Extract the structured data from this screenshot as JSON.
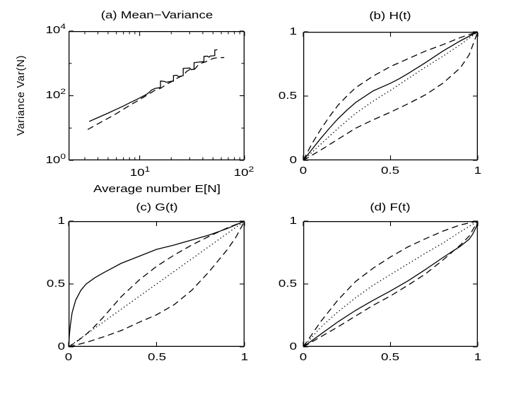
{
  "figure": {
    "background": "#ffffff",
    "stroke_color": "#000000"
  },
  "chart_data": [
    {
      "id": "a",
      "type": "line",
      "scale": "log-log",
      "title": "(a) Mean−Variance",
      "xlabel": "Average number E[N]",
      "ylabel": "Variance Var(N)",
      "xlim": [
        2.1,
        100
      ],
      "ylim": [
        1,
        10000
      ],
      "grid": false,
      "legend": "none",
      "xticks": [
        {
          "value": 10,
          "base": "10",
          "exp": "1"
        },
        {
          "value": 100,
          "base": "10",
          "exp": "2"
        }
      ],
      "yticks": [
        {
          "value": 1,
          "base": "10",
          "exp": "0"
        },
        {
          "value": 100,
          "base": "10",
          "exp": "2"
        },
        {
          "value": 10000,
          "base": "10",
          "exp": "4"
        }
      ],
      "minor_xticks": [
        3,
        4,
        5,
        6,
        7,
        8,
        9,
        20,
        30,
        40,
        50,
        60,
        70,
        80,
        90
      ],
      "minor_yticks": [
        10,
        1000
      ],
      "series": [
        {
          "name": "solid-staircase",
          "style": "solid",
          "points": [
            [
              3.3,
              16
            ],
            [
              4,
              21
            ],
            [
              5,
              29
            ],
            [
              6,
              38
            ],
            [
              7,
              48
            ],
            [
              8,
              60
            ],
            [
              9,
              72
            ],
            [
              10,
              85
            ],
            [
              11,
              100
            ],
            [
              12,
              118
            ],
            [
              13,
              150
            ],
            [
              14,
              168
            ],
            [
              15,
              175
            ],
            [
              15.8,
              182
            ],
            [
              15.8,
              285
            ],
            [
              17,
              278
            ],
            [
              18,
              262
            ],
            [
              19,
              272
            ],
            [
              20,
              278
            ],
            [
              21,
              282
            ],
            [
              21,
              420
            ],
            [
              22.5,
              430
            ],
            [
              23.5,
              392
            ],
            [
              24.5,
              400
            ],
            [
              26,
              420
            ],
            [
              26,
              700
            ],
            [
              28,
              712
            ],
            [
              30,
              720
            ],
            [
              31,
              640
            ],
            [
              32,
              650
            ],
            [
              33,
              658
            ],
            [
              33,
              1050
            ],
            [
              35,
              1080
            ],
            [
              37,
              1100
            ],
            [
              39,
              1120
            ],
            [
              41,
              1140
            ],
            [
              41,
              1650
            ],
            [
              44,
              1680
            ],
            [
              46,
              1560
            ],
            [
              47,
              1690
            ],
            [
              50,
              1720
            ],
            [
              52,
              1750
            ],
            [
              52,
              2600
            ],
            [
              54,
              2620
            ],
            [
              55,
              2700
            ]
          ]
        },
        {
          "name": "dashed-smooth",
          "style": "dashed",
          "points": [
            [
              3.2,
              9
            ],
            [
              4,
              13.5
            ],
            [
              5,
              20
            ],
            [
              6,
              28
            ],
            [
              7,
              38
            ],
            [
              8,
              50
            ],
            [
              9,
              62
            ],
            [
              10,
              76
            ],
            [
              12,
              108
            ],
            [
              14,
              148
            ],
            [
              16,
              172
            ],
            [
              18,
              228
            ],
            [
              20,
              268
            ],
            [
              22,
              330
            ],
            [
              24,
              378
            ],
            [
              26,
              428
            ],
            [
              28,
              560
            ],
            [
              30,
              650
            ],
            [
              32,
              610
            ],
            [
              34,
              700
            ],
            [
              36,
              880
            ],
            [
              38,
              1000
            ],
            [
              40,
              1050
            ],
            [
              42,
              1100
            ],
            [
              44,
              1180
            ],
            [
              46,
              1260
            ],
            [
              48,
              1340
            ],
            [
              50,
              1420
            ],
            [
              53,
              1480
            ],
            [
              58,
              1500
            ],
            [
              64,
              1520
            ]
          ]
        }
      ]
    },
    {
      "id": "b",
      "type": "line",
      "scale": "linear",
      "title": "(b) H(t)",
      "xlabel": "",
      "ylabel": "",
      "xlim": [
        0,
        1
      ],
      "ylim": [
        0,
        1
      ],
      "grid": false,
      "legend": "none",
      "xticks": [
        "0",
        "0.5",
        "1"
      ],
      "yticks": [
        "0",
        "0.5",
        "1"
      ],
      "series": [
        {
          "name": "dashed-upper",
          "style": "dashed",
          "points": [
            [
              0,
              0
            ],
            [
              0.05,
              0.13
            ],
            [
              0.1,
              0.24
            ],
            [
              0.15,
              0.34
            ],
            [
              0.2,
              0.43
            ],
            [
              0.25,
              0.5
            ],
            [
              0.3,
              0.565
            ],
            [
              0.4,
              0.655
            ],
            [
              0.5,
              0.73
            ],
            [
              0.6,
              0.79
            ],
            [
              0.7,
              0.85
            ],
            [
              0.8,
              0.9
            ],
            [
              0.9,
              0.955
            ],
            [
              1,
              1
            ]
          ]
        },
        {
          "name": "solid",
          "style": "solid",
          "points": [
            [
              0,
              0
            ],
            [
              0.05,
              0.085
            ],
            [
              0.1,
              0.17
            ],
            [
              0.15,
              0.25
            ],
            [
              0.2,
              0.325
            ],
            [
              0.25,
              0.39
            ],
            [
              0.3,
              0.45
            ],
            [
              0.4,
              0.54
            ],
            [
              0.5,
              0.6
            ],
            [
              0.55,
              0.635
            ],
            [
              0.6,
              0.675
            ],
            [
              0.7,
              0.76
            ],
            [
              0.8,
              0.85
            ],
            [
              0.9,
              0.93
            ],
            [
              0.95,
              0.965
            ],
            [
              1,
              1
            ]
          ]
        },
        {
          "name": "dotted-reference",
          "style": "dotted",
          "points": [
            [
              0,
              0
            ],
            [
              0.1,
              0.125
            ],
            [
              0.2,
              0.25
            ],
            [
              0.3,
              0.365
            ],
            [
              0.4,
              0.46
            ],
            [
              0.5,
              0.545
            ],
            [
              0.6,
              0.635
            ],
            [
              0.7,
              0.725
            ],
            [
              0.8,
              0.81
            ],
            [
              0.9,
              0.9
            ],
            [
              1,
              1
            ]
          ]
        },
        {
          "name": "dashed-lower",
          "style": "dashed",
          "points": [
            [
              0,
              0
            ],
            [
              0.1,
              0.08
            ],
            [
              0.2,
              0.165
            ],
            [
              0.3,
              0.25
            ],
            [
              0.4,
              0.315
            ],
            [
              0.5,
              0.375
            ],
            [
              0.6,
              0.44
            ],
            [
              0.7,
              0.51
            ],
            [
              0.8,
              0.6
            ],
            [
              0.9,
              0.72
            ],
            [
              0.95,
              0.82
            ],
            [
              1,
              1
            ]
          ]
        }
      ]
    },
    {
      "id": "c",
      "type": "line",
      "scale": "linear",
      "title": "(c) G(t)",
      "xlabel": "",
      "ylabel": "",
      "xlim": [
        0,
        1
      ],
      "ylim": [
        0,
        1
      ],
      "grid": false,
      "legend": "none",
      "xticks": [
        "0",
        "0.5",
        "1"
      ],
      "yticks": [
        "0",
        "0.5",
        "1"
      ],
      "series": [
        {
          "name": "solid",
          "style": "solid",
          "points": [
            [
              0,
              0
            ],
            [
              0.005,
              0.1
            ],
            [
              0.01,
              0.17
            ],
            [
              0.02,
              0.27
            ],
            [
              0.04,
              0.37
            ],
            [
              0.07,
              0.45
            ],
            [
              0.1,
              0.5
            ],
            [
              0.15,
              0.55
            ],
            [
              0.2,
              0.59
            ],
            [
              0.3,
              0.665
            ],
            [
              0.4,
              0.72
            ],
            [
              0.5,
              0.775
            ],
            [
              0.6,
              0.81
            ],
            [
              0.7,
              0.85
            ],
            [
              0.8,
              0.89
            ],
            [
              0.9,
              0.94
            ],
            [
              1,
              1
            ]
          ]
        },
        {
          "name": "dashed-upper",
          "style": "dashed",
          "points": [
            [
              0,
              0
            ],
            [
              0.05,
              0.045
            ],
            [
              0.1,
              0.1
            ],
            [
              0.15,
              0.165
            ],
            [
              0.2,
              0.24
            ],
            [
              0.3,
              0.4
            ],
            [
              0.4,
              0.53
            ],
            [
              0.5,
              0.64
            ],
            [
              0.6,
              0.73
            ],
            [
              0.7,
              0.81
            ],
            [
              0.8,
              0.88
            ],
            [
              0.9,
              0.945
            ],
            [
              1,
              1
            ]
          ]
        },
        {
          "name": "dotted-reference",
          "style": "dotted",
          "points": [
            [
              0,
              0
            ],
            [
              0.1,
              0.1
            ],
            [
              0.2,
              0.2
            ],
            [
              0.3,
              0.3
            ],
            [
              0.4,
              0.4
            ],
            [
              0.5,
              0.5
            ],
            [
              0.6,
              0.6
            ],
            [
              0.7,
              0.7
            ],
            [
              0.8,
              0.8
            ],
            [
              0.9,
              0.9
            ],
            [
              1,
              1
            ]
          ]
        },
        {
          "name": "dashed-lower",
          "style": "dashed",
          "points": [
            [
              0,
              0
            ],
            [
              0.1,
              0.035
            ],
            [
              0.2,
              0.08
            ],
            [
              0.3,
              0.13
            ],
            [
              0.4,
              0.195
            ],
            [
              0.5,
              0.255
            ],
            [
              0.6,
              0.335
            ],
            [
              0.7,
              0.45
            ],
            [
              0.8,
              0.6
            ],
            [
              0.9,
              0.77
            ],
            [
              0.95,
              0.87
            ],
            [
              1,
              1
            ]
          ]
        }
      ]
    },
    {
      "id": "d",
      "type": "line",
      "scale": "linear",
      "title": "(d) F(t)",
      "xlabel": "",
      "ylabel": "",
      "xlim": [
        0,
        1
      ],
      "ylim": [
        0,
        1
      ],
      "grid": false,
      "legend": "none",
      "xticks": [
        "0",
        "0.5",
        "1"
      ],
      "yticks": [
        "0",
        "0.5",
        "1"
      ],
      "series": [
        {
          "name": "dashed-upper",
          "style": "dashed",
          "points": [
            [
              0,
              0
            ],
            [
              0.05,
              0.1
            ],
            [
              0.1,
              0.2
            ],
            [
              0.2,
              0.375
            ],
            [
              0.3,
              0.52
            ],
            [
              0.4,
              0.625
            ],
            [
              0.5,
              0.715
            ],
            [
              0.6,
              0.795
            ],
            [
              0.7,
              0.86
            ],
            [
              0.8,
              0.92
            ],
            [
              0.9,
              0.97
            ],
            [
              1,
              1
            ]
          ]
        },
        {
          "name": "dotted-reference",
          "style": "dotted",
          "points": [
            [
              0,
              0
            ],
            [
              0.1,
              0.155
            ],
            [
              0.2,
              0.28
            ],
            [
              0.3,
              0.39
            ],
            [
              0.4,
              0.49
            ],
            [
              0.5,
              0.575
            ],
            [
              0.6,
              0.66
            ],
            [
              0.7,
              0.745
            ],
            [
              0.8,
              0.825
            ],
            [
              0.9,
              0.915
            ],
            [
              1,
              1
            ]
          ]
        },
        {
          "name": "solid",
          "style": "solid",
          "points": [
            [
              0,
              0
            ],
            [
              0.1,
              0.1
            ],
            [
              0.2,
              0.2
            ],
            [
              0.3,
              0.29
            ],
            [
              0.4,
              0.37
            ],
            [
              0.5,
              0.445
            ],
            [
              0.6,
              0.525
            ],
            [
              0.7,
              0.615
            ],
            [
              0.8,
              0.71
            ],
            [
              0.9,
              0.8
            ],
            [
              0.95,
              0.855
            ],
            [
              0.97,
              0.895
            ],
            [
              0.99,
              0.95
            ],
            [
              1,
              1
            ]
          ]
        },
        {
          "name": "dashed-lower",
          "style": "dashed",
          "points": [
            [
              0,
              0
            ],
            [
              0.1,
              0.08
            ],
            [
              0.2,
              0.16
            ],
            [
              0.3,
              0.245
            ],
            [
              0.4,
              0.33
            ],
            [
              0.5,
              0.405
            ],
            [
              0.6,
              0.49
            ],
            [
              0.7,
              0.58
            ],
            [
              0.8,
              0.69
            ],
            [
              0.9,
              0.81
            ],
            [
              0.95,
              0.88
            ],
            [
              1,
              1
            ]
          ]
        }
      ]
    }
  ]
}
